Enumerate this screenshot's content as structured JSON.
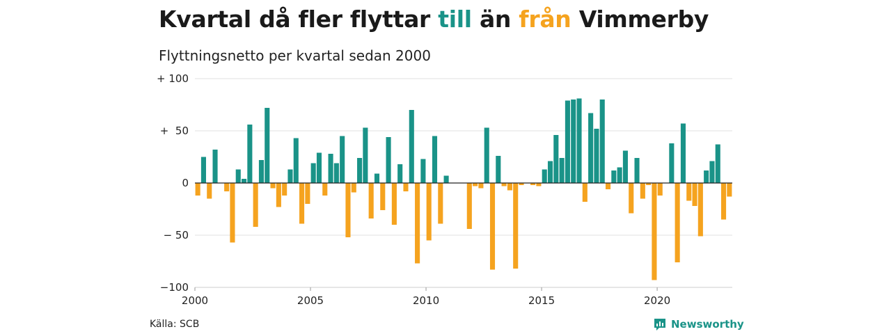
{
  "header": {
    "title_pre": "Kvartal då fler flyttar ",
    "title_pos": "till",
    "title_mid": " än ",
    "title_neg": "från",
    "title_post": " Vimmerby",
    "subtitle": "Flyttningsnetto per kvartal sedan 2000"
  },
  "footer": {
    "source": "Källa: SCB",
    "brand": "Newsworthy",
    "brand_icon": "bar-chart-icon"
  },
  "colors": {
    "positive": "#1a9388",
    "negative": "#f5a31f",
    "grid": "#e0e0e0",
    "zero": "#222222"
  },
  "chart_data": {
    "type": "bar",
    "title": "Kvartal då fler flyttar till än från Vimmerby",
    "subtitle": "Flyttningsnetto per kvartal sedan 2000",
    "x_start": 2000,
    "x_step": 0.25,
    "xlim": [
      2000,
      2023.25
    ],
    "ylim": [
      -100,
      100
    ],
    "x_ticks": [
      {
        "value": 2000,
        "label": "2000"
      },
      {
        "value": 2005,
        "label": "2005"
      },
      {
        "value": 2010,
        "label": "2010"
      },
      {
        "value": 2015,
        "label": "2015"
      },
      {
        "value": 2020,
        "label": "2020"
      }
    ],
    "y_ticks": [
      {
        "value": 100,
        "label": "+ 100"
      },
      {
        "value": 50,
        "label": "+  50"
      },
      {
        "value": 0,
        "label": "0"
      },
      {
        "value": -50,
        "label": "− 50"
      },
      {
        "value": -100,
        "label": "−100"
      }
    ],
    "grid": true,
    "legend": "none",
    "values": [
      -12,
      25,
      -15,
      32,
      0,
      -8,
      -57,
      13,
      4,
      56,
      -42,
      22,
      72,
      -5,
      -23,
      -12,
      13,
      43,
      -39,
      -20,
      19,
      29,
      -12,
      28,
      19,
      45,
      -52,
      -9,
      24,
      53,
      -34,
      9,
      -26,
      44,
      -40,
      18,
      -8,
      70,
      -77,
      23,
      -55,
      45,
      -39,
      7,
      0,
      0,
      0,
      -44,
      -3,
      -5,
      53,
      -83,
      26,
      -3,
      -7,
      -82,
      -2,
      0,
      -2,
      -3,
      13,
      21,
      46,
      24,
      79,
      80,
      81,
      -18,
      67,
      52,
      80,
      -6,
      12,
      15,
      31,
      -29,
      24,
      -15,
      -2,
      -93,
      -12,
      0,
      38,
      -76,
      57,
      -17,
      -22,
      -51,
      12,
      21,
      37,
      -35,
      -13
    ]
  }
}
